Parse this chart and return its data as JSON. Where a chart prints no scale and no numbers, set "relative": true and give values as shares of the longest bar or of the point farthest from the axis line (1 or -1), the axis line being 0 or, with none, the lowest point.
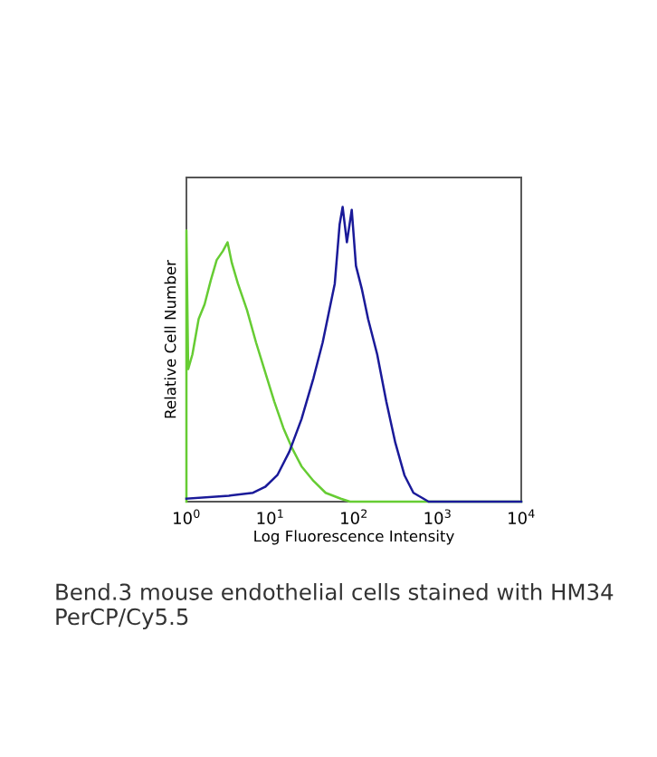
{
  "chart_data": {
    "type": "line",
    "relative": true,
    "xlabel": "Log Fluorescence Intensity",
    "ylabel": "Relative Cell Number",
    "log": "x",
    "xlim": [
      1,
      10000
    ],
    "xticks": [
      {
        "value": 1,
        "label": "10$^{0}$"
      },
      {
        "value": 10,
        "label": "10$^{1}$"
      },
      {
        "value": 100,
        "label": "10$^{2}$"
      },
      {
        "value": 1000,
        "label": "10$^{3}$"
      },
      {
        "value": 10000,
        "label": "10$^{4}$"
      }
    ],
    "grid": false,
    "marker": "none",
    "line_style": "solid",
    "series": [
      {
        "color": "#66cc33",
        "x": [
          1,
          1,
          1.05,
          1.18,
          1.4,
          1.65,
          1.95,
          2.3,
          2.72,
          3.1,
          3.49,
          4.12,
          5.29,
          6.79,
          8.72,
          11.2,
          14.4,
          18.4,
          23.7,
          33,
          46,
          69.9,
          89.8,
          10000
        ],
        "values": [
          0,
          0.92,
          0.45,
          0.5,
          0.62,
          0.67,
          0.75,
          0.82,
          0.85,
          0.88,
          0.81,
          0.74,
          0.65,
          0.54,
          0.44,
          0.34,
          0.25,
          0.18,
          0.12,
          0.07,
          0.03,
          0.01,
          0,
          0
        ]
      },
      {
        "color": "#1a1a99",
        "x": [
          1,
          3.21,
          6.25,
          8.72,
          12.2,
          17,
          23.7,
          33,
          42.4,
          50.1,
          59.2,
          67.6,
          73.5,
          82.6,
          94.4,
          106,
          125,
          148,
          190,
          244,
          313,
          402,
          515,
          782,
          10000
        ],
        "values": [
          0.01,
          0.02,
          0.03,
          0.05,
          0.09,
          0.17,
          0.28,
          0.42,
          0.54,
          0.64,
          0.74,
          0.94,
          1,
          0.88,
          0.99,
          0.8,
          0.72,
          0.62,
          0.5,
          0.34,
          0.2,
          0.09,
          0.03,
          0,
          0
        ]
      }
    ],
    "annotations": [
      "Bend.3 mouse endothelial cells stained with HM34 PerCP/Cy5.5"
    ]
  }
}
